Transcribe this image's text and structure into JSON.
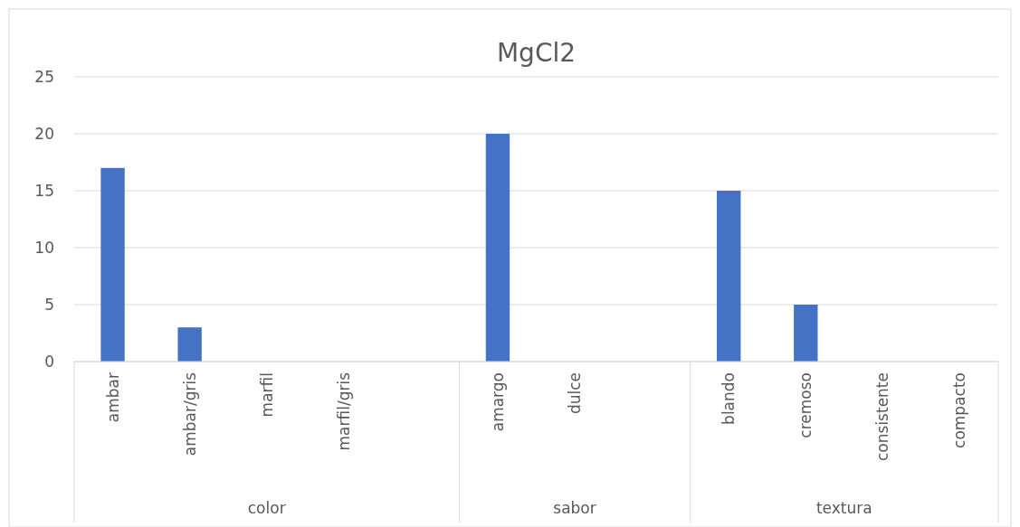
{
  "chart_data": {
    "type": "bar",
    "title": "MgCl2",
    "categories": [
      "ambar",
      "ambar/gris",
      "marfil",
      "marfil/gris",
      null,
      "amargo",
      "dulce",
      null,
      "blando",
      "cremoso",
      "consistente",
      "compacto"
    ],
    "values": [
      17,
      3,
      0,
      0,
      null,
      20,
      0,
      null,
      15,
      5,
      0,
      0
    ],
    "color": "#4472c4",
    "ylim": [
      0,
      25
    ],
    "yticks": [
      0,
      5,
      10,
      15,
      20,
      25
    ],
    "grid": "y",
    "annotations": [
      "color",
      "sabor",
      "textura"
    ]
  }
}
